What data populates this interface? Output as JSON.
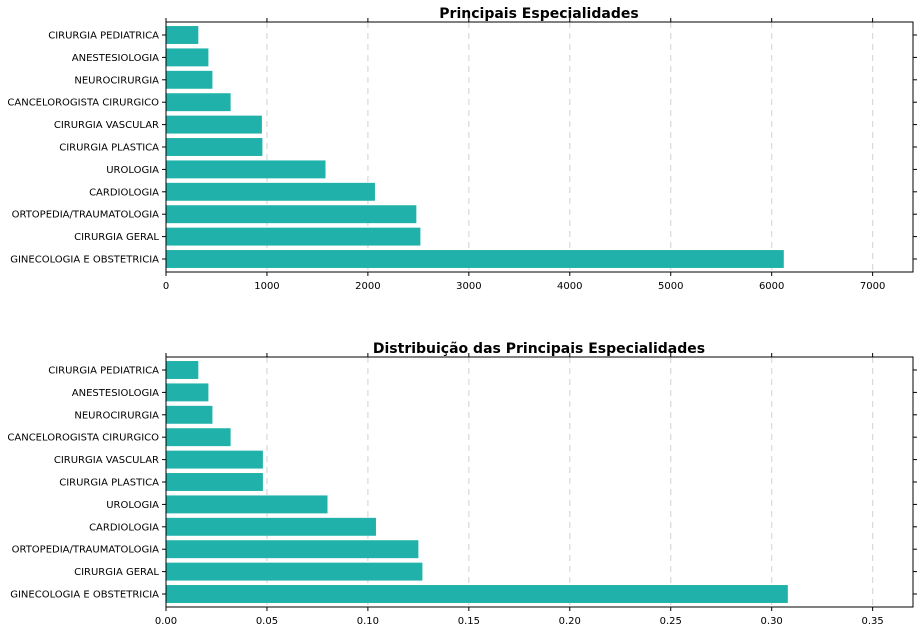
{
  "chart_data": [
    {
      "type": "bar",
      "orientation": "horizontal",
      "title": "Principais Especialidades",
      "categories": [
        "GINECOLOGIA E OBSTETRICIA",
        "CIRURGIA GERAL",
        "ORTOPEDIA/TRAUMATOLOGIA",
        "CARDIOLOGIA",
        "UROLOGIA",
        "CIRURGIA PLASTICA",
        "CIRURGIA VASCULAR",
        "CANCELOROGISTA CIRURGICO",
        "NEUROCIRURGIA",
        "ANESTESIOLOGIA",
        "CIRURGIA PEDIATRICA"
      ],
      "values": [
        6120,
        2520,
        2480,
        2070,
        1580,
        955,
        950,
        640,
        460,
        420,
        320
      ],
      "xlim": [
        0,
        7400
      ],
      "xticks": [
        0,
        1000,
        2000,
        3000,
        4000,
        5000,
        6000,
        7000
      ],
      "xtick_labels": [
        "0",
        "1000",
        "2000",
        "3000",
        "4000",
        "5000",
        "6000",
        "7000"
      ],
      "grid": "vertical-dashed",
      "color": "#20b2aa",
      "xlabel": "",
      "ylabel": ""
    },
    {
      "type": "bar",
      "orientation": "horizontal",
      "title": "Distribuição das Principais Especialidades",
      "categories": [
        "GINECOLOGIA E OBSTETRICIA",
        "CIRURGIA GERAL",
        "ORTOPEDIA/TRAUMATOLOGIA",
        "CARDIOLOGIA",
        "UROLOGIA",
        "CIRURGIA PLASTICA",
        "CIRURGIA VASCULAR",
        "CANCELOROGISTA CIRURGICO",
        "NEUROCIRURGIA",
        "ANESTESIOLOGIA",
        "CIRURGIA PEDIATRICA"
      ],
      "values": [
        0.308,
        0.127,
        0.125,
        0.104,
        0.08,
        0.048,
        0.048,
        0.032,
        0.023,
        0.021,
        0.016
      ],
      "xlim": [
        0,
        0.37
      ],
      "xticks": [
        0,
        0.05,
        0.1,
        0.15,
        0.2,
        0.25,
        0.3,
        0.35
      ],
      "xtick_labels": [
        "0.00",
        "0.05",
        "0.10",
        "0.15",
        "0.20",
        "0.25",
        "0.30",
        "0.35"
      ],
      "grid": "vertical-dashed",
      "color": "#20b2aa",
      "xlabel": "",
      "ylabel": ""
    }
  ]
}
